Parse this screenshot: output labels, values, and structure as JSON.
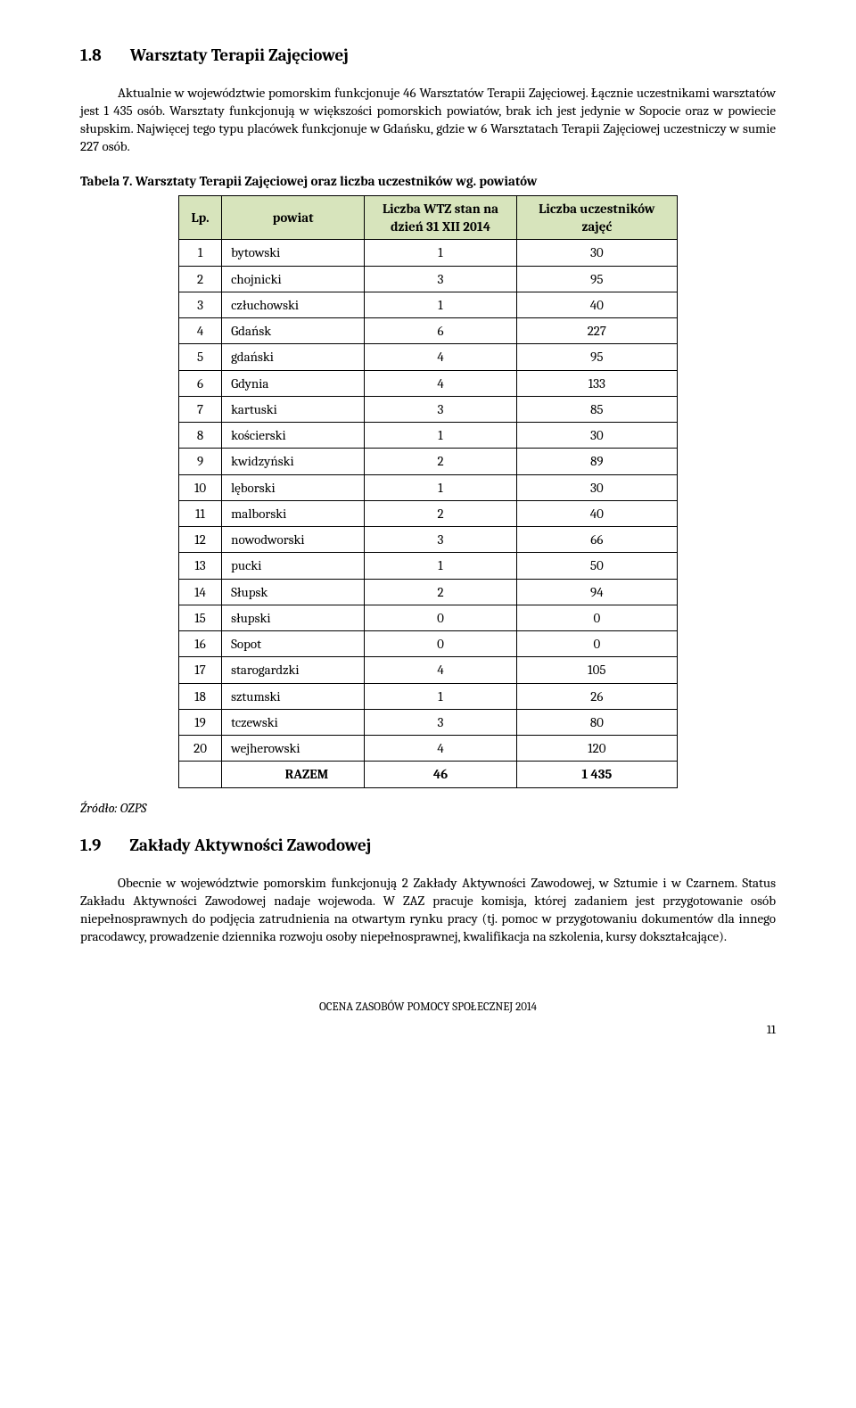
{
  "section1": {
    "num": "1.8",
    "title": "Warsztaty Terapii Zajęciowej",
    "p1": "Aktualnie w województwie pomorskim funkcjonuje 46 Warsztatów Terapii Zajęciowej. Łącznie uczestnikami warsztatów jest 1 435 osób. Warsztaty funkcjonują w większości pomorskich powiatów, brak ich jest jedynie w Sopocie oraz w powiecie słupskim. Najwięcej tego typu placówek funkcjonuje w Gdańsku, gdzie w 6 Warsztatach Terapii Zajęciowej uczestniczy w sumie 227 osób."
  },
  "table": {
    "caption": "Tabela 7. Warsztaty Terapii Zajęciowej oraz liczba uczestników wg. powiatów",
    "headers": {
      "lp": "Lp.",
      "powiat": "powiat",
      "wtz": "Liczba WTZ stan na dzień 31 XII 2014",
      "ucz": "Liczba uczestników zajęć"
    },
    "header_bg": "#d7e4bc",
    "border_color": "#000000",
    "rows": [
      {
        "lp": "1",
        "powiat": "bytowski",
        "wtz": "1",
        "ucz": "30"
      },
      {
        "lp": "2",
        "powiat": "chojnicki",
        "wtz": "3",
        "ucz": "95"
      },
      {
        "lp": "3",
        "powiat": "człuchowski",
        "wtz": "1",
        "ucz": "40"
      },
      {
        "lp": "4",
        "powiat": "Gdańsk",
        "wtz": "6",
        "ucz": "227"
      },
      {
        "lp": "5",
        "powiat": "gdański",
        "wtz": "4",
        "ucz": "95"
      },
      {
        "lp": "6",
        "powiat": "Gdynia",
        "wtz": "4",
        "ucz": "133"
      },
      {
        "lp": "7",
        "powiat": "kartuski",
        "wtz": "3",
        "ucz": "85"
      },
      {
        "lp": "8",
        "powiat": "kościerski",
        "wtz": "1",
        "ucz": "30"
      },
      {
        "lp": "9",
        "powiat": "kwidzyński",
        "wtz": "2",
        "ucz": "89"
      },
      {
        "lp": "10",
        "powiat": "lęborski",
        "wtz": "1",
        "ucz": "30"
      },
      {
        "lp": "11",
        "powiat": "malborski",
        "wtz": "2",
        "ucz": "40"
      },
      {
        "lp": "12",
        "powiat": "nowodworski",
        "wtz": "3",
        "ucz": "66"
      },
      {
        "lp": "13",
        "powiat": "pucki",
        "wtz": "1",
        "ucz": "50"
      },
      {
        "lp": "14",
        "powiat": "Słupsk",
        "wtz": "2",
        "ucz": "94"
      },
      {
        "lp": "15",
        "powiat": "słupski",
        "wtz": "0",
        "ucz": "0"
      },
      {
        "lp": "16",
        "powiat": "Sopot",
        "wtz": "0",
        "ucz": "0"
      },
      {
        "lp": "17",
        "powiat": "starogardzki",
        "wtz": "4",
        "ucz": "105"
      },
      {
        "lp": "18",
        "powiat": "sztumski",
        "wtz": "1",
        "ucz": "26"
      },
      {
        "lp": "19",
        "powiat": "tczewski",
        "wtz": "3",
        "ucz": "80"
      },
      {
        "lp": "20",
        "powiat": "wejherowski",
        "wtz": "4",
        "ucz": "120"
      }
    ],
    "total": {
      "label": "RAZEM",
      "wtz": "46",
      "ucz": "1 435"
    }
  },
  "source": "Źródło: OZPS",
  "section2": {
    "num": "1.9",
    "title": "Zakłady Aktywności Zawodowej",
    "p1": "Obecnie w województwie pomorskim funkcjonują 2 Zakłady Aktywności Zawodowej, w Sztumie i w Czarnem. Status Zakładu Aktywności Zawodowej nadaje wojewoda. W ZAZ pracuje komisja, której zadaniem jest przygotowanie osób niepełnosprawnych do podjęcia zatrudnienia na otwartym rynku pracy (tj. pomoc w przygotowaniu dokumentów dla innego pracodawcy, prowadzenie dziennika rozwoju osoby niepełnosprawnej, kwalifikacja na szkolenia, kursy dokształcające)."
  },
  "footer": "OCENA ZASOBÓW POMOCY SPOŁECZNEJ 2014",
  "page_number": "11"
}
